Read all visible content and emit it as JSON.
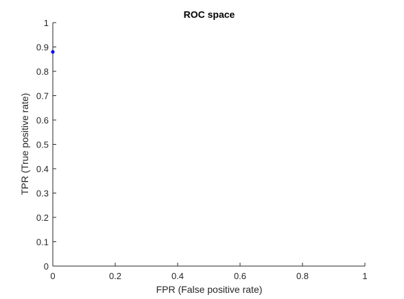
{
  "chart_data": {
    "type": "scatter",
    "title": "ROC space",
    "xlabel": "FPR (False positive rate)",
    "ylabel": "TPR (True positive rate)",
    "xlim": [
      0,
      1
    ],
    "ylim": [
      0,
      1
    ],
    "xticks": [
      0,
      0.2,
      0.4,
      0.6,
      0.8,
      1
    ],
    "xtick_labels": [
      "0",
      "0.2",
      "0.4",
      "0.6",
      "0.8",
      "1"
    ],
    "yticks": [
      0,
      0.1,
      0.2,
      0.3,
      0.4,
      0.5,
      0.6,
      0.7,
      0.8,
      0.9,
      1
    ],
    "ytick_labels": [
      "0",
      "0.1",
      "0.2",
      "0.3",
      "0.4",
      "0.5",
      "0.6",
      "0.7",
      "0.8",
      "0.9",
      "1"
    ],
    "grid": false,
    "series": [
      {
        "x": [
          0
        ],
        "y": [
          0.88
        ],
        "color": "#0000ff"
      }
    ]
  }
}
